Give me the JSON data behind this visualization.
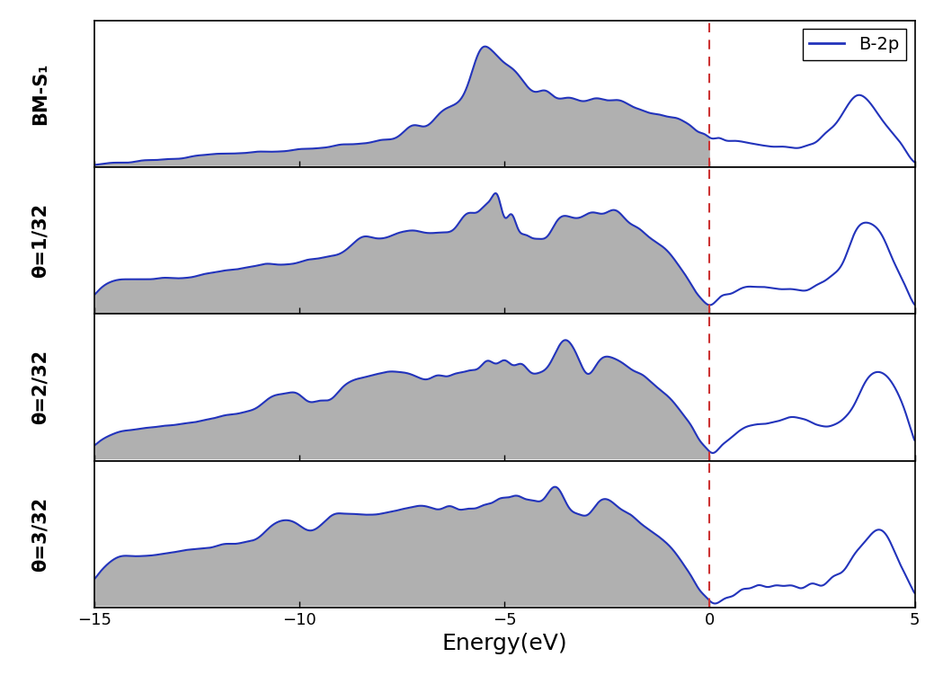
{
  "xlim": [
    -15,
    5
  ],
  "fermi_energy": 0.0,
  "panels": [
    {
      "label": "BM-S₁"
    },
    {
      "label": "θ=1/32"
    },
    {
      "label": "θ=2/32"
    },
    {
      "label": "θ=3/32"
    }
  ],
  "line_color": "#2233bb",
  "fill_color": "#b0b0b0",
  "fill_alpha": 1.0,
  "dashed_color": "#cc3333",
  "xlabel": "Energy(eV)",
  "legend_label": "B-2p",
  "xlabel_fontsize": 18,
  "label_fontsize": 15,
  "legend_fontsize": 14,
  "xticks": [
    -15,
    -10,
    -5,
    0,
    5
  ]
}
